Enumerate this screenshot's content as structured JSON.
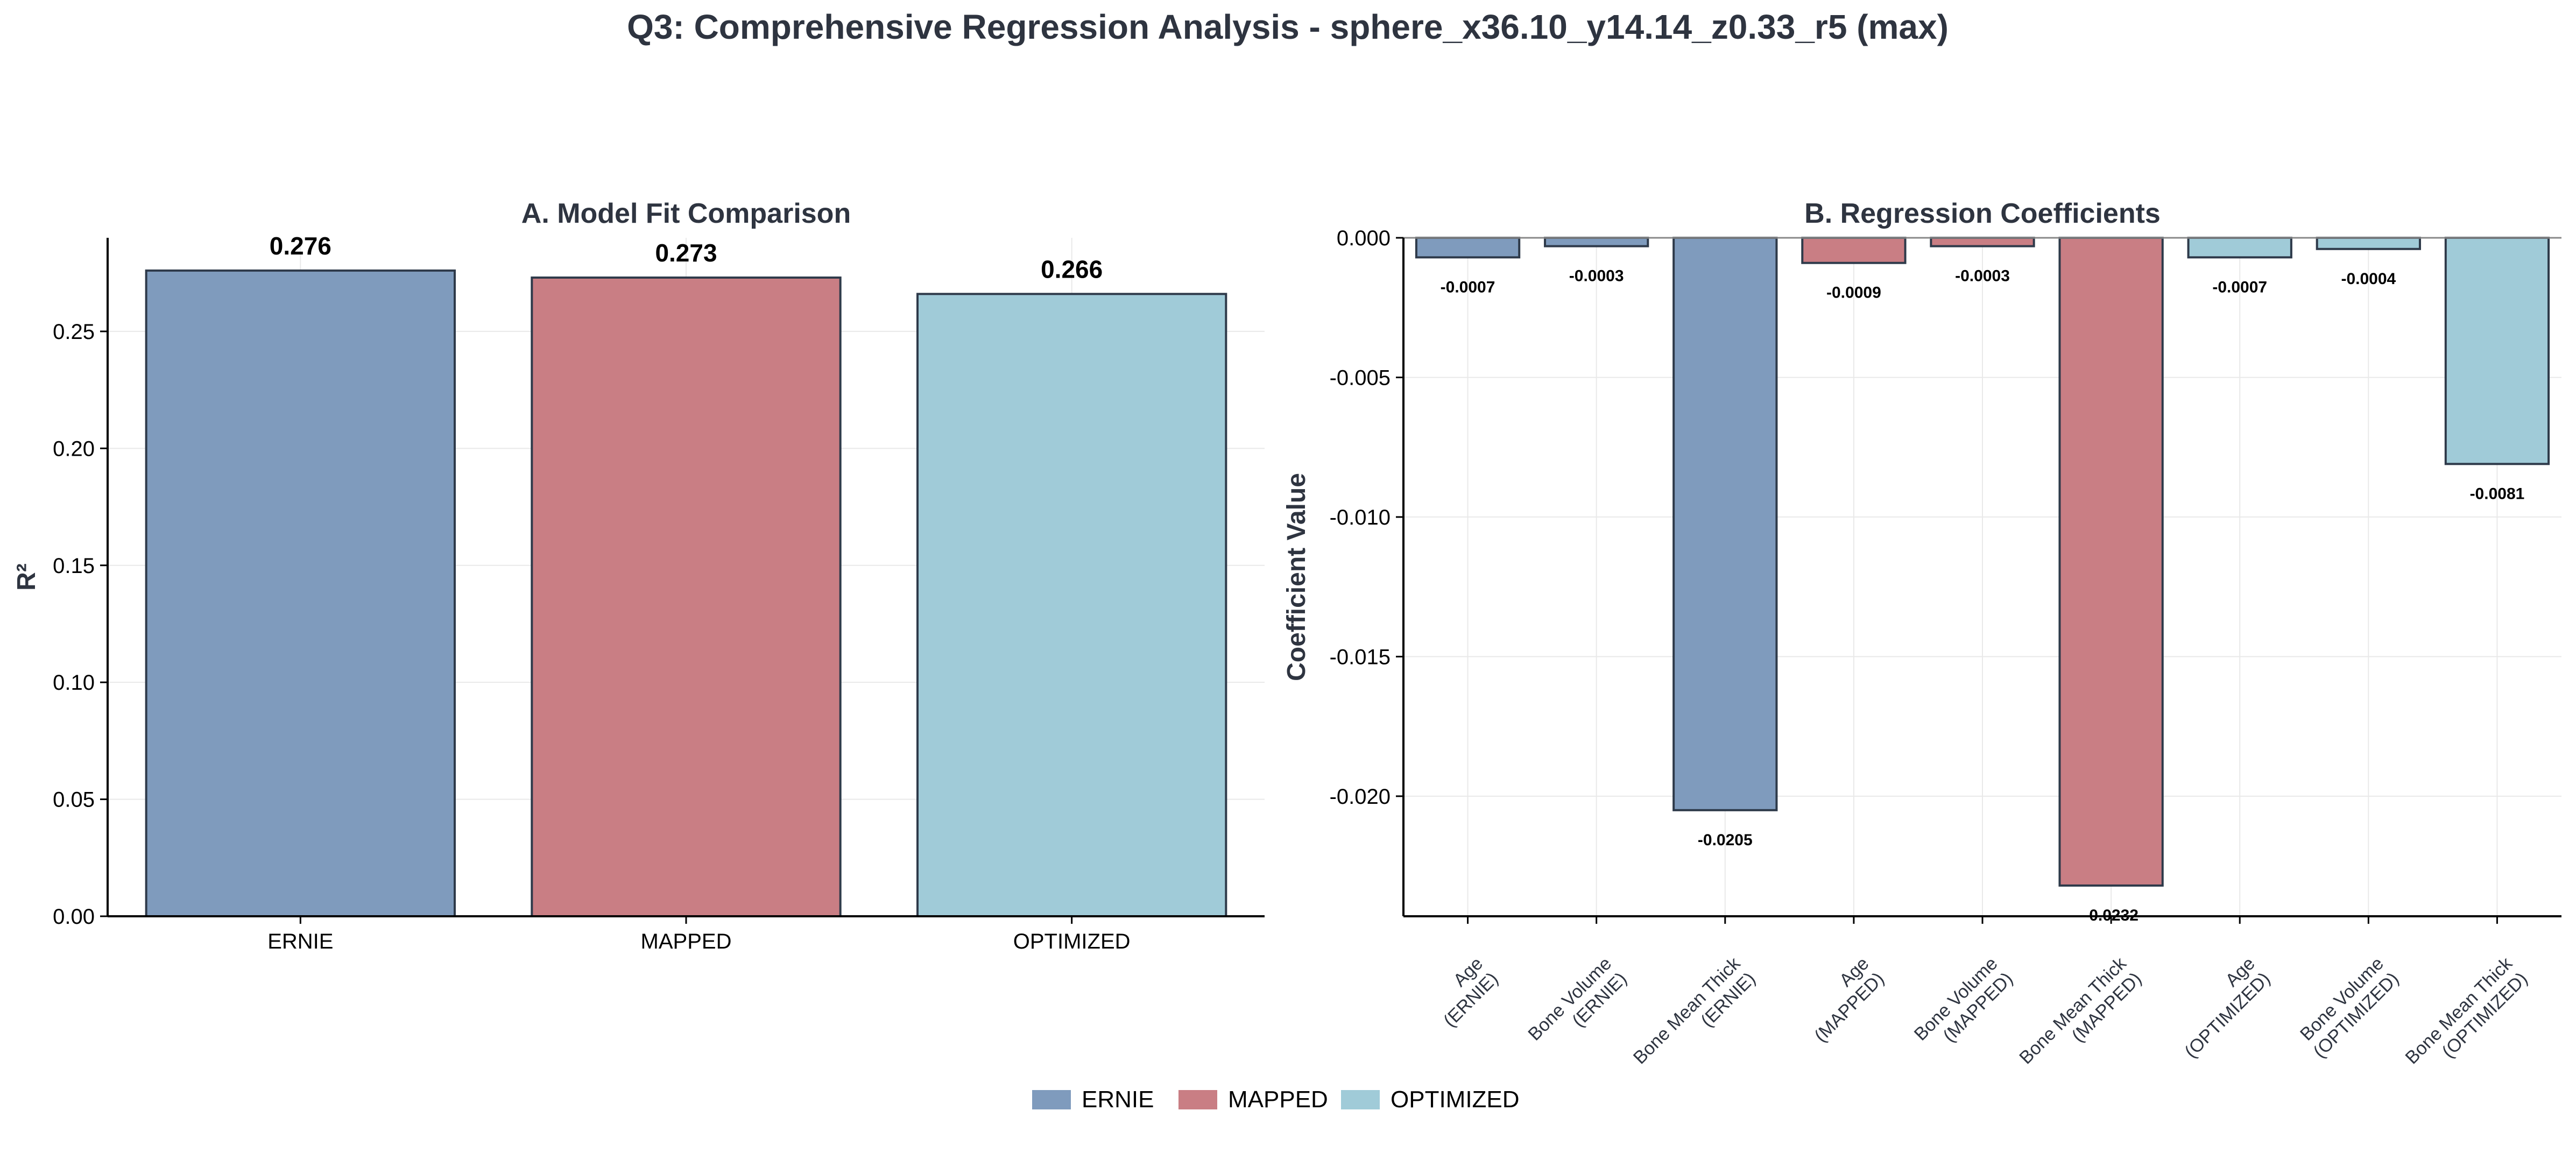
{
  "figure": {
    "title": "Q3: Comprehensive Regression Analysis - sphere_x36.10_y14.14_z0.33_r5 (max)"
  },
  "colors": {
    "ERNIE": "#7f9bbd",
    "MAPPED": "#c97e84",
    "OPTIMIZED": "#a0cbd8",
    "bar_edge": "#2e3a4a",
    "text_dark": "#2e3440",
    "grid": "#e9e9e9"
  },
  "legend": {
    "placement": "bottom-center",
    "entries": [
      {
        "label": "ERNIE",
        "color_key": "ERNIE"
      },
      {
        "label": "MAPPED",
        "color_key": "MAPPED"
      },
      {
        "label": "OPTIMIZED",
        "color_key": "OPTIMIZED"
      }
    ]
  },
  "chart_data": [
    {
      "type": "bar",
      "title": "A. Model Fit Comparison",
      "xlabel": "",
      "ylabel": "R²",
      "categories": [
        "ERNIE",
        "MAPPED",
        "OPTIMIZED"
      ],
      "values": [
        0.276,
        0.273,
        0.266
      ],
      "value_labels": [
        "0.276",
        "0.273",
        "0.266"
      ],
      "color_keys": [
        "ERNIE",
        "MAPPED",
        "OPTIMIZED"
      ],
      "ylim": [
        0,
        0.29
      ],
      "yticks": [
        0.0,
        0.05,
        0.1,
        0.15,
        0.2,
        0.25
      ],
      "ytick_labels": [
        "0.00",
        "0.05",
        "0.10",
        "0.15",
        "0.20",
        "0.25"
      ],
      "grid": true
    },
    {
      "type": "bar",
      "title": "B. Regression Coefficients",
      "xlabel": "",
      "ylabel": "Coefficient Value",
      "categories": [
        [
          "Age",
          "(ERNIE)"
        ],
        [
          "Bone Volume",
          "(ERNIE)"
        ],
        [
          "Bone Mean Thick",
          "(ERNIE)"
        ],
        [
          "Age",
          "(MAPPED)"
        ],
        [
          "Bone Volume",
          "(MAPPED)"
        ],
        [
          "Bone Mean Thick",
          "(MAPPED)"
        ],
        [
          "Age",
          "(OPTIMIZED)"
        ],
        [
          "Bone Volume",
          "(OPTIMIZED)"
        ],
        [
          "Bone Mean Thick",
          "(OPTIMIZED)"
        ]
      ],
      "values": [
        -0.0007,
        -0.0003,
        -0.0205,
        -0.0009,
        -0.0003,
        -0.0232,
        -0.0007,
        -0.0004,
        -0.0081
      ],
      "value_labels": [
        "-0.0007",
        "-0.0003",
        "-0.0205",
        "-0.0009",
        "-0.0003",
        "-0.0232",
        "-0.0007",
        "-0.0004",
        "-0.0081"
      ],
      "color_keys": [
        "ERNIE",
        "ERNIE",
        "ERNIE",
        "MAPPED",
        "MAPPED",
        "MAPPED",
        "OPTIMIZED",
        "OPTIMIZED",
        "OPTIMIZED"
      ],
      "ylim": [
        -0.0243,
        0.0
      ],
      "yticks": [
        0.0,
        -0.005,
        -0.01,
        -0.015,
        -0.02
      ],
      "ytick_labels": [
        "0.000",
        "-0.005",
        "-0.010",
        "-0.015",
        "-0.020"
      ],
      "zero_line": true,
      "grid": true
    }
  ]
}
